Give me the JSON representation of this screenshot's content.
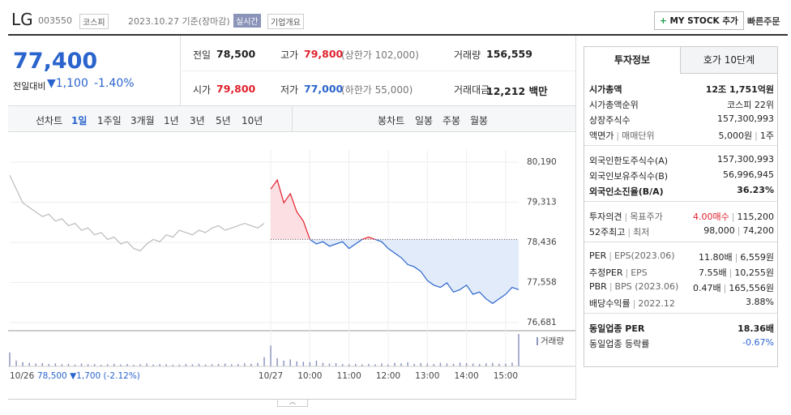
{
  "header": {
    "name": "LG",
    "code": "003550",
    "market": "코스피",
    "date": "2023.10.27 기준(장마감)",
    "realtime": "실시간",
    "company": "기업개요",
    "mystock": "MY STOCK 추가",
    "order": "빠른주문"
  },
  "price": {
    "current": "77,400",
    "change_label": "전일대비",
    "change": "▼1,100",
    "rate": "-1.40%"
  },
  "summary": [
    [
      [
        "전일",
        "78,500"
      ],
      [
        "고가",
        "79,800",
        "(상한가 102,000)"
      ],
      [
        "거래량",
        "156,559"
      ]
    ],
    [
      [
        "시가",
        "79,800"
      ],
      [
        "저가",
        "77,000",
        "(하한가 55,000)"
      ],
      [
        "거래대금",
        "12,212 백만"
      ]
    ]
  ],
  "tabs": {
    "line_label": "선차트",
    "line": [
      "1일",
      "1주일",
      "3개월",
      "1년",
      "3년",
      "5년",
      "10년"
    ],
    "candle_label": "봉차트",
    "candle": [
      "일봉",
      "주봉",
      "월봉"
    ]
  },
  "chart_data": {
    "type": "line",
    "categories": [
      "10/26",
      null,
      null,
      null,
      null,
      null,
      null,
      null,
      null,
      null,
      null,
      null,
      null,
      null,
      null,
      null,
      null,
      null,
      null,
      null,
      null,
      null,
      null,
      null,
      null,
      null,
      null,
      null,
      null,
      null,
      null,
      null,
      null,
      null,
      null,
      null,
      null,
      null,
      null,
      null,
      "10/27",
      null,
      null,
      null,
      null,
      null,
      "10:00",
      null,
      null,
      null,
      null,
      null,
      "11:00",
      null,
      null,
      null,
      null,
      null,
      "12:00",
      null,
      null,
      null,
      null,
      null,
      "13:00",
      null,
      null,
      null,
      null,
      null,
      "14:00",
      null,
      null,
      null,
      null,
      null,
      "15:00",
      null,
      null
    ],
    "series": [
      {
        "color": "#bbbbbb",
        "values": [
          79900,
          79600,
          79300,
          79200,
          79100,
          79000,
          79050,
          78900,
          78950,
          78800,
          78850,
          78700,
          78750,
          78600,
          78650,
          78500,
          78550,
          78400,
          78450,
          78300,
          78250,
          78400,
          78500,
          78450,
          78600,
          78550,
          78700,
          78650,
          78600,
          78700,
          78650,
          78750,
          78800,
          78700,
          78750,
          78800,
          78850,
          78800,
          78750,
          78850,
          null,
          null,
          null,
          null,
          null,
          null,
          null,
          null,
          null,
          null,
          null,
          null,
          null,
          null,
          null,
          null,
          null,
          null,
          null,
          null,
          null,
          null,
          null,
          null,
          null,
          null,
          null,
          null,
          null,
          null,
          null,
          null,
          null,
          null,
          null,
          null,
          null,
          null,
          null
        ]
      },
      {
        "color": "#2a64cc",
        "up_color": "#e0212e",
        "fill": "#e2ebf9",
        "up_fill": "#fbdfe2",
        "values": [
          null,
          null,
          null,
          null,
          null,
          null,
          null,
          null,
          null,
          null,
          null,
          null,
          null,
          null,
          null,
          null,
          null,
          null,
          null,
          null,
          null,
          null,
          null,
          null,
          null,
          null,
          null,
          null,
          null,
          null,
          null,
          null,
          null,
          null,
          null,
          null,
          null,
          null,
          null,
          null,
          79600,
          79800,
          79300,
          79500,
          79100,
          78900,
          78500,
          78400,
          78450,
          78350,
          78400,
          78450,
          78300,
          78400,
          78500,
          78550,
          78500,
          78450,
          78300,
          78200,
          78100,
          77950,
          77900,
          77800,
          77600,
          77500,
          77450,
          77550,
          77350,
          77400,
          77500,
          77300,
          77350,
          77200,
          77100,
          77200,
          77300,
          77450,
          77400
        ]
      }
    ],
    "baseline": 78500,
    "ylim": [
      76681,
      80190
    ],
    "yticks": [
      {
        "value": 80190,
        "label": "80,190"
      },
      {
        "value": 79313,
        "label": "79,313"
      },
      {
        "value": 78436,
        "label": "78,436"
      },
      {
        "value": 77558,
        "label": "77,558"
      },
      {
        "value": 76681,
        "label": "76,681"
      }
    ],
    "grid": true,
    "volume": {
      "label": "거래량",
      "color": "#8d96bd",
      "values": [
        6000,
        2500,
        1800,
        1500,
        1200,
        1400,
        1000,
        1300,
        900,
        1100,
        800,
        1200,
        900,
        1000,
        700,
        900,
        1100,
        800,
        1000,
        700,
        900,
        1200,
        800,
        1000,
        900,
        700,
        800,
        1000,
        900,
        1100,
        800,
        900,
        1000,
        1200,
        900,
        1000,
        1300,
        1100,
        1500,
        4000,
        9000,
        3500,
        2500,
        3000,
        2200,
        2000,
        1800,
        2500,
        1500,
        1200,
        1400,
        1000,
        900,
        1100,
        800,
        1000,
        900,
        1200,
        800,
        1500,
        1300,
        1800,
        1100,
        1400,
        1200,
        1000,
        1500,
        1300,
        1100,
        1600,
        1400,
        1200,
        1000,
        1300,
        1500,
        1100,
        1200,
        1600,
        14000
      ]
    },
    "prev_summary": "78,500 ▼1,700 (-2.12%)"
  },
  "info": {
    "tabs": [
      "투자정보",
      "호가 10단계"
    ],
    "groups": [
      [
        {
          "label": [
            "시가총액"
          ],
          "value": [
            "12조 1,751억원"
          ]
        },
        {
          "label": [
            "시가총액순위"
          ],
          "value": [
            "코스피 22위"
          ]
        },
        {
          "label": [
            "상장주식수"
          ],
          "value": [
            "157,300,993"
          ]
        },
        {
          "label": [
            "액면가",
            "매매단위"
          ],
          "value": [
            "5,000원",
            "1주"
          ]
        }
      ],
      [
        {
          "label": [
            "외국인한도주식수(A)"
          ],
          "value": [
            "157,300,993"
          ]
        },
        {
          "label": [
            "외국인보유주식수(B)"
          ],
          "value": [
            "56,996,945"
          ]
        },
        {
          "label": [
            "외국인소진율(B/A)"
          ],
          "value": [
            "36.23%"
          ]
        }
      ],
      [
        {
          "label": [
            "투자의견",
            "목표주가"
          ],
          "value": [
            "4.00매수",
            "115,200"
          ]
        },
        {
          "label": [
            "52주최고",
            "최저"
          ],
          "value": [
            "98,000",
            "74,200"
          ]
        }
      ],
      [
        {
          "label": [
            "PER",
            "EPS(2023.06)"
          ],
          "value": [
            "11.80배",
            "6,559원"
          ]
        },
        {
          "label": [
            "추정PER",
            "EPS"
          ],
          "value": [
            "7.55배",
            "10,255원"
          ]
        },
        {
          "label": [
            "PBR",
            "BPS (2023.06)"
          ],
          "value": [
            "0.47배",
            "165,556원"
          ]
        },
        {
          "label": [
            "배당수익률",
            "2022.12"
          ],
          "value": [
            "3.88%"
          ]
        }
      ],
      [
        {
          "label": [
            "동일업종 PER"
          ],
          "value": [
            "18.36배"
          ]
        },
        {
          "label": [
            "동일업종 등락률"
          ],
          "value": [
            "-0.67%"
          ]
        }
      ]
    ]
  }
}
